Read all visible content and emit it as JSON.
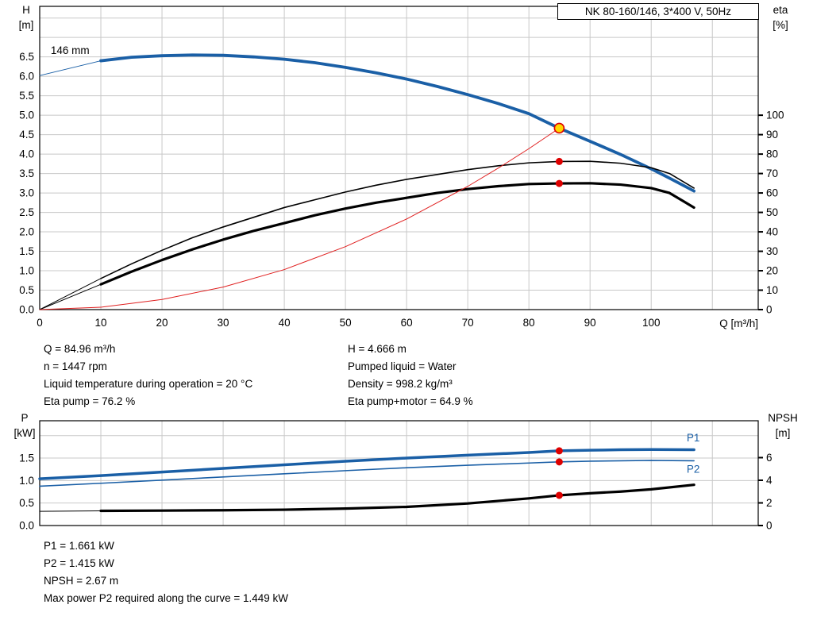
{
  "info_mid_left": [
    "Q = 84.96 m³/h",
    "n = 1447 rpm",
    "Liquid temperature during operation = 20 °C",
    "Eta pump = 76.2 %"
  ],
  "info_mid_right": [
    "H = 4.666 m",
    "Pumped liquid = Water",
    "Density = 998.2 kg/m³",
    "Eta pump+motor = 64.9 %"
  ],
  "info_bottom": [
    "P1 = 1.661 kW",
    "P2 = 1.415 kW",
    "NPSH = 2.67 m",
    "Max power P2 required along the curve = 1.449 kW"
  ],
  "colors": {
    "curve_blue": "#1a5fa6",
    "curve_black": "#000000",
    "marker_red": "#dd0000",
    "duty_yellow": "#ffd800",
    "qh_red": "#e02020",
    "grid": "#c8c8c8",
    "axis": "#000000"
  },
  "chart_data": [
    {
      "type": "line",
      "title": "NK 80-160/146, 3*400 V, 50Hz",
      "axis_labels": {
        "left": [
          "H",
          "[m]"
        ],
        "right": [
          "eta",
          "[%]"
        ],
        "x": "Q [m³/h]"
      },
      "xlim": [
        0,
        117.5
      ],
      "x_grid_step": 10,
      "x_tick_labels": [
        "0",
        "10",
        "20",
        "30",
        "40",
        "50",
        "60",
        "70",
        "80",
        "90",
        "100"
      ],
      "ylim_left": [
        0,
        7.8
      ],
      "left_grid_step": 0.5,
      "left_tick_labels": [
        "0.0",
        "0.5",
        "1.0",
        "1.5",
        "2.0",
        "2.5",
        "3.0",
        "3.5",
        "4.0",
        "4.5",
        "5.0",
        "5.5",
        "6.0",
        "6.5"
      ],
      "ylim_right": [
        0,
        156
      ],
      "right_tick_labels": [
        "0",
        "10",
        "20",
        "30",
        "40",
        "50",
        "60",
        "70",
        "80",
        "90",
        "100"
      ],
      "series": [
        {
          "name": "h-curve-lead",
          "axis": "left",
          "color": "#1a5fa6",
          "width": 1,
          "points": [
            [
              0,
              6.02
            ],
            [
              10,
              6.4
            ]
          ]
        },
        {
          "name": "h-curve-146mm",
          "axis": "left",
          "color": "#1a5fa6",
          "width": 3.8,
          "points": [
            [
              10,
              6.4
            ],
            [
              15,
              6.49
            ],
            [
              20,
              6.53
            ],
            [
              25,
              6.55
            ],
            [
              30,
              6.54
            ],
            [
              35,
              6.5
            ],
            [
              40,
              6.44
            ],
            [
              45,
              6.35
            ],
            [
              50,
              6.23
            ],
            [
              55,
              6.09
            ],
            [
              60,
              5.93
            ],
            [
              65,
              5.74
            ],
            [
              70,
              5.53
            ],
            [
              75,
              5.3
            ],
            [
              80,
              5.04
            ],
            [
              84.96,
              4.666
            ],
            [
              90,
              4.33
            ],
            [
              95,
              3.99
            ],
            [
              100,
              3.62
            ],
            [
              103,
              3.38
            ],
            [
              107,
              3.05
            ]
          ]
        },
        {
          "name": "eta-pump-lead",
          "axis": "right",
          "color": "#000000",
          "width": 1,
          "points": [
            [
              0,
              0
            ],
            [
              10,
              16
            ]
          ]
        },
        {
          "name": "eta-pump-curve",
          "axis": "right",
          "color": "#000000",
          "width": 1.6,
          "points": [
            [
              10,
              16
            ],
            [
              15,
              23.5
            ],
            [
              20,
              30.5
            ],
            [
              25,
              37
            ],
            [
              30,
              42.5
            ],
            [
              35,
              47.5
            ],
            [
              40,
              52.5
            ],
            [
              45,
              56.5
            ],
            [
              50,
              60.5
            ],
            [
              55,
              64
            ],
            [
              60,
              67
            ],
            [
              65,
              69.5
            ],
            [
              70,
              72
            ],
            [
              75,
              74
            ],
            [
              80,
              75.5
            ],
            [
              84.96,
              76.2
            ],
            [
              90,
              76.3
            ],
            [
              95,
              75.3
            ],
            [
              100,
              73
            ],
            [
              103,
              70
            ],
            [
              107,
              62.5
            ]
          ]
        },
        {
          "name": "eta-pump-motor-lead",
          "axis": "right",
          "color": "#000000",
          "width": 1,
          "points": [
            [
              0,
              0
            ],
            [
              10,
              13
            ]
          ]
        },
        {
          "name": "eta-pump-motor-curve",
          "axis": "right",
          "color": "#000000",
          "width": 3.2,
          "points": [
            [
              10,
              13
            ],
            [
              15,
              19.5
            ],
            [
              20,
              25.5
            ],
            [
              25,
              31
            ],
            [
              30,
              36
            ],
            [
              35,
              40.5
            ],
            [
              40,
              44.5
            ],
            [
              45,
              48.5
            ],
            [
              50,
              52
            ],
            [
              55,
              55
            ],
            [
              60,
              57.5
            ],
            [
              65,
              60
            ],
            [
              70,
              62
            ],
            [
              75,
              63.5
            ],
            [
              80,
              64.6
            ],
            [
              84.96,
              64.9
            ],
            [
              90,
              65
            ],
            [
              95,
              64.3
            ],
            [
              100,
              62.5
            ],
            [
              103,
              60
            ],
            [
              107,
              52.5
            ]
          ]
        },
        {
          "name": "qh-duty-parabola",
          "axis": "left",
          "color": "#e02020",
          "width": 1,
          "points": [
            [
              0,
              0
            ],
            [
              10,
              0.06
            ],
            [
              20,
              0.26
            ],
            [
              30,
              0.58
            ],
            [
              40,
              1.03
            ],
            [
              50,
              1.62
            ],
            [
              60,
              2.33
            ],
            [
              70,
              3.17
            ],
            [
              75,
              3.64
            ],
            [
              80,
              4.14
            ],
            [
              84.96,
              4.666
            ]
          ]
        }
      ],
      "markers": [
        {
          "name": "duty-point-qh",
          "x": 84.96,
          "y": 4.666,
          "axis": "left",
          "radius": 6,
          "fill": "#ffd800",
          "stroke": "#dd0000"
        },
        {
          "name": "duty-point-eta-pump",
          "x": 84.96,
          "y": 76.2,
          "axis": "right",
          "radius": 4.5,
          "fill": "#dd0000"
        },
        {
          "name": "duty-point-eta-pump-motor",
          "x": 84.96,
          "y": 64.9,
          "axis": "right",
          "radius": 4.5,
          "fill": "#dd0000"
        }
      ],
      "annotations": [
        {
          "name": "impeller-diameter-label",
          "text": "146 mm",
          "x": 1.8,
          "y": 6.57,
          "axis": "left",
          "color": "#000000"
        }
      ]
    },
    {
      "type": "line",
      "title": "",
      "axis_labels": {
        "left": [
          "P",
          "[kW]"
        ],
        "right": [
          "NPSH",
          "[m]"
        ],
        "x": ""
      },
      "xlim": [
        0,
        117.5
      ],
      "x_grid_step": 10,
      "x_tick_labels": [],
      "ylim_left": [
        0,
        2.33
      ],
      "left_grid_step": 0.5,
      "left_tick_labels": [
        "0.0",
        "0.5",
        "1.0",
        "1.5"
      ],
      "ylim_right": [
        0,
        9.26
      ],
      "right_tick_labels": [
        "0",
        "2",
        "4",
        "6"
      ],
      "series": [
        {
          "name": "p1-curve",
          "axis": "left",
          "color": "#1a5fa6",
          "width": 3.5,
          "points": [
            [
              0,
              1.04
            ],
            [
              10,
              1.11
            ],
            [
              20,
              1.19
            ],
            [
              30,
              1.27
            ],
            [
              40,
              1.35
            ],
            [
              50,
              1.43
            ],
            [
              60,
              1.5
            ],
            [
              70,
              1.565
            ],
            [
              80,
              1.625
            ],
            [
              84.96,
              1.661
            ],
            [
              90,
              1.675
            ],
            [
              95,
              1.685
            ],
            [
              100,
              1.69
            ],
            [
              107,
              1.685
            ]
          ]
        },
        {
          "name": "p2-curve",
          "axis": "left",
          "color": "#1a5fa6",
          "width": 1.6,
          "points": [
            [
              0,
              0.875
            ],
            [
              10,
              0.94
            ],
            [
              20,
              1.01
            ],
            [
              30,
              1.08
            ],
            [
              40,
              1.15
            ],
            [
              50,
              1.22
            ],
            [
              60,
              1.285
            ],
            [
              70,
              1.34
            ],
            [
              80,
              1.39
            ],
            [
              84.96,
              1.415
            ],
            [
              90,
              1.43
            ],
            [
              95,
              1.44
            ],
            [
              100,
              1.449
            ],
            [
              107,
              1.44
            ]
          ]
        },
        {
          "name": "npsh-lead",
          "axis": "right",
          "color": "#000000",
          "width": 1,
          "points": [
            [
              0,
              1.25
            ],
            [
              10,
              1.3
            ]
          ]
        },
        {
          "name": "npsh-curve",
          "axis": "right",
          "color": "#000000",
          "width": 3.2,
          "points": [
            [
              10,
              1.3
            ],
            [
              20,
              1.32
            ],
            [
              30,
              1.35
            ],
            [
              40,
              1.4
            ],
            [
              50,
              1.5
            ],
            [
              60,
              1.65
            ],
            [
              70,
              1.95
            ],
            [
              80,
              2.4
            ],
            [
              84.96,
              2.67
            ],
            [
              90,
              2.85
            ],
            [
              95,
              3.0
            ],
            [
              100,
              3.2
            ],
            [
              107,
              3.6
            ]
          ]
        }
      ],
      "markers": [
        {
          "name": "duty-point-p1",
          "x": 84.96,
          "y": 1.661,
          "axis": "left",
          "radius": 4.5,
          "fill": "#dd0000"
        },
        {
          "name": "duty-point-p2",
          "x": 84.96,
          "y": 1.415,
          "axis": "left",
          "radius": 4.5,
          "fill": "#dd0000"
        },
        {
          "name": "duty-point-npsh",
          "x": 84.96,
          "y": 2.67,
          "axis": "right",
          "radius": 4.5,
          "fill": "#dd0000"
        }
      ],
      "annotations": [
        {
          "name": "p1-curve-label",
          "text": "P1",
          "x": 105.8,
          "y": 1.87,
          "axis": "left",
          "color": "#1a5fa6"
        },
        {
          "name": "p2-curve-label",
          "text": "P2",
          "x": 105.8,
          "y": 1.17,
          "axis": "left",
          "color": "#1a5fa6"
        }
      ]
    }
  ]
}
